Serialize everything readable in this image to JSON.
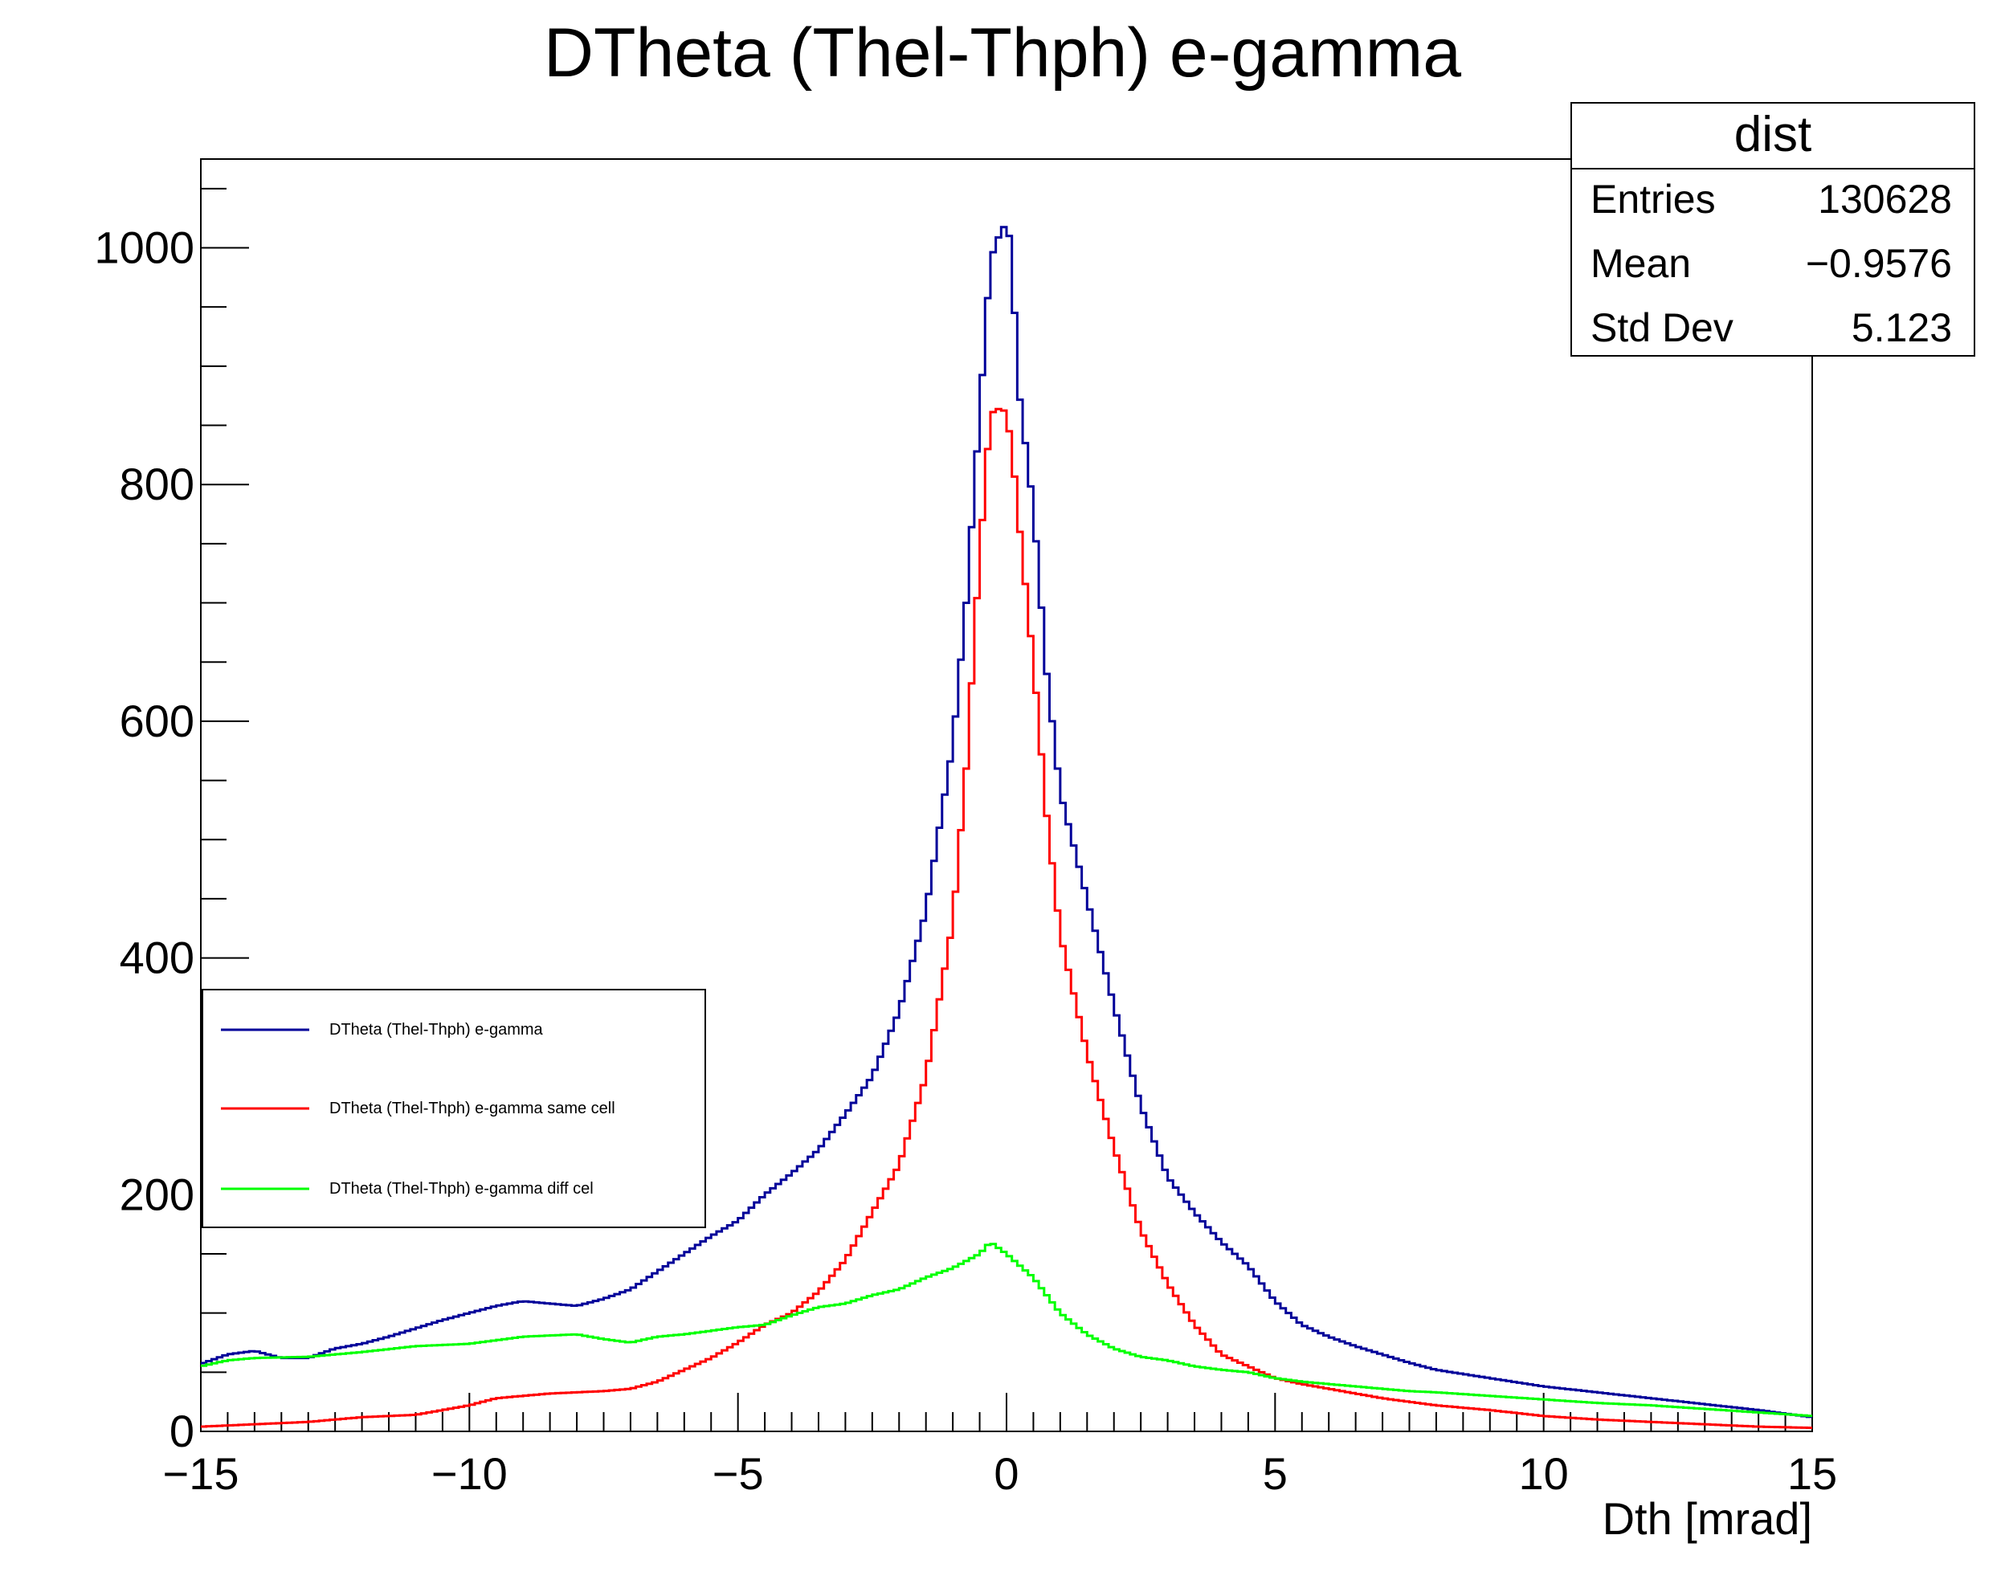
{
  "chart_data": {
    "type": "histogram",
    "title": "DTheta (Thel-Thph) e-gamma",
    "xlabel": "Dth [mrad]",
    "ylabel": "",
    "xlim": [
      -15,
      15
    ],
    "ylim": [
      0,
      1075
    ],
    "x_ticks": [
      -15,
      -10,
      -5,
      0,
      5,
      10,
      15
    ],
    "x_tick_labels": [
      "−15",
      "−10",
      "−5",
      "0",
      "5",
      "10",
      "15"
    ],
    "y_ticks": [
      0,
      200,
      400,
      600,
      800,
      1000
    ],
    "y_tick_labels": [
      "0",
      "200",
      "400",
      "600",
      "800",
      "1000"
    ],
    "grid": false,
    "legend_position": "middle-left",
    "stats_box": {
      "title": "dist",
      "rows": [
        {
          "label": "Entries",
          "value": "130628"
        },
        {
          "label": "Mean",
          "value": "−0.9576"
        },
        {
          "label": "Std Dev",
          "value": "5.123"
        }
      ]
    },
    "bins": {
      "n": 300,
      "x_min": -15,
      "x_max": 15,
      "bin_width": 0.1
    },
    "series": [
      {
        "name": "DTheta (Thel-Thph) e-gamma",
        "color": "#000099",
        "values": [
          [
            -15,
            57
          ],
          [
            -14.5,
            65
          ],
          [
            -14,
            68
          ],
          [
            -13.5,
            62
          ],
          [
            -13,
            62
          ],
          [
            -12.5,
            70
          ],
          [
            -12,
            74
          ],
          [
            -11.5,
            80
          ],
          [
            -11,
            87
          ],
          [
            -10.5,
            94
          ],
          [
            -10,
            100
          ],
          [
            -9.5,
            106
          ],
          [
            -9,
            110
          ],
          [
            -8.5,
            108
          ],
          [
            -8,
            106
          ],
          [
            -7.5,
            112
          ],
          [
            -7,
            120
          ],
          [
            -6.5,
            135
          ],
          [
            -6,
            150
          ],
          [
            -5.5,
            165
          ],
          [
            -5,
            178
          ],
          [
            -4.5,
            200
          ],
          [
            -4,
            218
          ],
          [
            -3.5,
            238
          ],
          [
            -3,
            268
          ],
          [
            -2.5,
            300
          ],
          [
            -2,
            355
          ],
          [
            -1.5,
            440
          ],
          [
            -1,
            580
          ],
          [
            -0.75,
            700
          ],
          [
            -0.5,
            860
          ],
          [
            -0.3,
            990
          ],
          [
            -0.1,
            1015
          ],
          [
            0,
            1020
          ],
          [
            0.1,
            1000
          ],
          [
            0.2,
            890
          ],
          [
            0.5,
            780
          ],
          [
            0.75,
            640
          ],
          [
            1,
            540
          ],
          [
            1.5,
            450
          ],
          [
            2,
            360
          ],
          [
            2.5,
            275
          ],
          [
            3,
            215
          ],
          [
            3.5,
            185
          ],
          [
            4,
            160
          ],
          [
            4.5,
            140
          ],
          [
            5,
            110
          ],
          [
            5.5,
            90
          ],
          [
            6,
            80
          ],
          [
            6.5,
            72
          ],
          [
            7,
            65
          ],
          [
            7.5,
            58
          ],
          [
            8,
            52
          ],
          [
            9,
            45
          ],
          [
            10,
            38
          ],
          [
            11,
            33
          ],
          [
            12,
            28
          ],
          [
            13,
            23
          ],
          [
            14,
            18
          ],
          [
            15,
            12
          ]
        ]
      },
      {
        "name": "DTheta (Thel-Thph) e-gamma same cell",
        "color": "#ff0000",
        "values": [
          [
            -15,
            4
          ],
          [
            -14,
            6
          ],
          [
            -13,
            8
          ],
          [
            -12,
            12
          ],
          [
            -11,
            14
          ],
          [
            -10,
            22
          ],
          [
            -9.5,
            28
          ],
          [
            -9,
            30
          ],
          [
            -8.5,
            32
          ],
          [
            -8,
            33
          ],
          [
            -7.5,
            34
          ],
          [
            -7,
            36
          ],
          [
            -6.5,
            42
          ],
          [
            -6,
            52
          ],
          [
            -5.5,
            62
          ],
          [
            -5,
            75
          ],
          [
            -4.5,
            90
          ],
          [
            -4,
            100
          ],
          [
            -3.5,
            118
          ],
          [
            -3,
            145
          ],
          [
            -2.5,
            185
          ],
          [
            -2,
            225
          ],
          [
            -1.5,
            300
          ],
          [
            -1,
            430
          ],
          [
            -0.75,
            560
          ],
          [
            -0.5,
            740
          ],
          [
            -0.3,
            860
          ],
          [
            -0.1,
            865
          ],
          [
            0,
            860
          ],
          [
            0.1,
            830
          ],
          [
            0.25,
            760
          ],
          [
            0.5,
            650
          ],
          [
            0.75,
            520
          ],
          [
            1,
            420
          ],
          [
            1.5,
            320
          ],
          [
            2,
            240
          ],
          [
            2.5,
            170
          ],
          [
            3,
            125
          ],
          [
            3.5,
            90
          ],
          [
            4,
            65
          ],
          [
            4.5,
            55
          ],
          [
            5,
            45
          ],
          [
            5.5,
            40
          ],
          [
            6,
            36
          ],
          [
            6.5,
            32
          ],
          [
            7,
            28
          ],
          [
            7.5,
            25
          ],
          [
            8,
            22
          ],
          [
            9,
            18
          ],
          [
            10,
            13
          ],
          [
            11,
            10
          ],
          [
            12,
            8
          ],
          [
            13,
            6
          ],
          [
            14,
            4
          ],
          [
            15,
            3
          ]
        ]
      },
      {
        "name": "DTheta (Thel-Thph) e-gamma diff cel",
        "color": "#00ff00",
        "values": [
          [
            -15,
            55
          ],
          [
            -14.5,
            60
          ],
          [
            -14,
            62
          ],
          [
            -13,
            63
          ],
          [
            -12,
            67
          ],
          [
            -11,
            72
          ],
          [
            -10,
            74
          ],
          [
            -9,
            80
          ],
          [
            -8,
            82
          ],
          [
            -7.5,
            78
          ],
          [
            -7,
            75
          ],
          [
            -6.5,
            80
          ],
          [
            -6,
            82
          ],
          [
            -5.5,
            85
          ],
          [
            -5,
            88
          ],
          [
            -4.5,
            90
          ],
          [
            -4,
            98
          ],
          [
            -3.5,
            105
          ],
          [
            -3,
            108
          ],
          [
            -2.5,
            115
          ],
          [
            -2,
            120
          ],
          [
            -1.5,
            130
          ],
          [
            -1,
            138
          ],
          [
            -0.5,
            150
          ],
          [
            -0.3,
            160
          ],
          [
            0,
            150
          ],
          [
            0.5,
            130
          ],
          [
            1,
            100
          ],
          [
            1.5,
            82
          ],
          [
            2,
            70
          ],
          [
            2.5,
            63
          ],
          [
            3,
            60
          ],
          [
            3.5,
            55
          ],
          [
            4,
            52
          ],
          [
            4.5,
            50
          ],
          [
            5,
            45
          ],
          [
            5.5,
            42
          ],
          [
            6,
            40
          ],
          [
            6.5,
            38
          ],
          [
            7,
            36
          ],
          [
            7.5,
            34
          ],
          [
            8,
            33
          ],
          [
            9,
            30
          ],
          [
            10,
            27
          ],
          [
            11,
            24
          ],
          [
            12,
            22
          ],
          [
            13,
            19
          ],
          [
            14,
            16
          ],
          [
            15,
            13
          ]
        ]
      }
    ]
  }
}
